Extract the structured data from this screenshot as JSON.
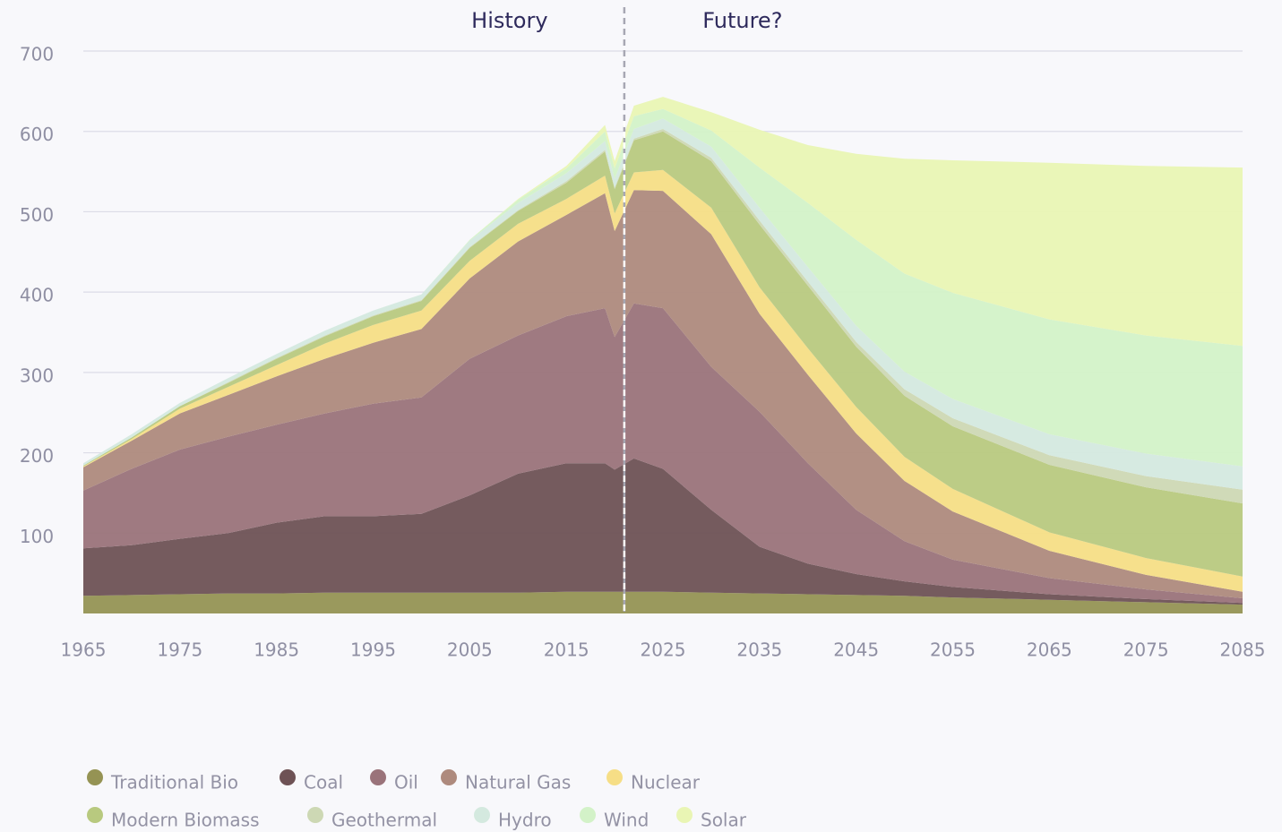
{
  "chart_data": {
    "type": "stacked_area",
    "annotations": [
      "History",
      "Future?"
    ],
    "divider": 2021,
    "x": [
      1965,
      1970,
      1975,
      1980,
      1985,
      1990,
      1995,
      2000,
      2005,
      2010,
      2015,
      2019,
      2020,
      2022,
      2025,
      2030,
      2035,
      2040,
      2045,
      2050,
      2055,
      2065,
      2075,
      2085
    ],
    "xlim": [
      1965,
      2085
    ],
    "xticks": [
      1965,
      1975,
      1985,
      1995,
      2005,
      2015,
      2025,
      2035,
      2045,
      2055,
      2065,
      2075,
      2085
    ],
    "ylim": [
      0,
      700
    ],
    "yticks": [
      100,
      200,
      300,
      400,
      500,
      600,
      700
    ],
    "grid": true,
    "series": [
      {
        "name": "Traditional Bio",
        "color": "#959354",
        "values": [
          22,
          23,
          24,
          25,
          25,
          26,
          26,
          26,
          26,
          26,
          27,
          27,
          27,
          27,
          27,
          26,
          25,
          24,
          23,
          22,
          20,
          17,
          14,
          11
        ]
      },
      {
        "name": "Coal",
        "color": "#6e5255",
        "values": [
          59,
          62,
          69,
          75,
          88,
          95,
          95,
          98,
          121,
          148,
          160,
          160,
          152,
          166,
          153,
          103,
          58,
          38,
          26,
          18,
          13,
          7,
          4,
          2
        ]
      },
      {
        "name": "Oil",
        "color": "#9a737a",
        "values": [
          72,
          95,
          111,
          120,
          122,
          128,
          140,
          145,
          170,
          172,
          183,
          193,
          165,
          193,
          200,
          178,
          168,
          125,
          80,
          50,
          34,
          20,
          12,
          6
        ]
      },
      {
        "name": "Natural Gas",
        "color": "#ae8a7d",
        "values": [
          29,
          35,
          45,
          52,
          60,
          68,
          76,
          85,
          100,
          117,
          126,
          143,
          132,
          141,
          146,
          165,
          122,
          110,
          95,
          75,
          60,
          34,
          18,
          8
        ]
      },
      {
        "name": "Nuclear",
        "color": "#f6de86",
        "values": [
          1,
          2,
          6,
          10,
          14,
          19,
          22,
          23,
          22,
          22,
          20,
          22,
          22,
          22,
          26,
          33,
          33,
          33,
          33,
          30,
          28,
          23,
          21,
          19
        ]
      },
      {
        "name": "Modern Biomass",
        "color": "#b8c97f",
        "values": [
          1,
          2,
          3,
          5,
          8,
          9,
          11,
          12,
          16,
          16,
          20,
          30,
          30,
          40,
          48,
          58,
          78,
          78,
          75,
          76,
          78,
          84,
          88,
          91
        ]
      },
      {
        "name": "Geothermal",
        "color": "#cdd8b4",
        "values": [
          0,
          0,
          0,
          1,
          1,
          1,
          1,
          1,
          1,
          1,
          2,
          2,
          2,
          2,
          3,
          4,
          5,
          5,
          6,
          8,
          10,
          12,
          14,
          17
        ]
      },
      {
        "name": "Hydro",
        "color": "#d4e9df",
        "values": [
          3,
          4,
          4,
          5,
          5,
          6,
          6,
          7,
          8,
          9,
          10,
          11,
          11,
          12,
          13,
          14,
          16,
          18,
          20,
          22,
          24,
          26,
          28,
          29
        ]
      },
      {
        "name": "Wind",
        "color": "#d3f2c8",
        "values": [
          0,
          0,
          0,
          0,
          0,
          0,
          0,
          0,
          1,
          4,
          6,
          12,
          13,
          16,
          12,
          20,
          50,
          80,
          107,
          122,
          132,
          143,
          147,
          150
        ]
      },
      {
        "name": "Solar",
        "color": "#e9f5b4",
        "values": [
          0,
          0,
          0,
          0,
          0,
          0,
          0,
          0,
          0,
          1,
          3,
          8,
          9,
          13,
          15,
          23,
          47,
          72,
          107,
          143,
          165,
          195,
          211,
          222
        ]
      }
    ]
  }
}
